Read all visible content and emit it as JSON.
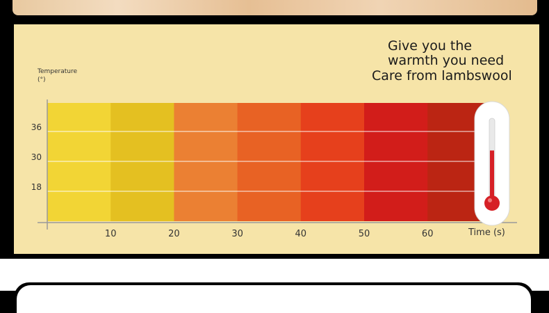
{
  "slogan": {
    "line1": "Give you the",
    "line2": "warmth you need",
    "line3": "Care from lambswool"
  },
  "chart_data": {
    "type": "bar",
    "ylabel": "Temperature",
    "yunit": "(°)",
    "xlabel": "Time (s)",
    "x_ticks": [
      "10",
      "20",
      "30",
      "40",
      "50",
      "60"
    ],
    "y_ticks": [
      "36",
      "30",
      "18"
    ],
    "grid": true,
    "segments": [
      {
        "from": 0,
        "to": 10,
        "color": "#f2d535"
      },
      {
        "from": 10,
        "to": 20,
        "color": "#e4c021"
      },
      {
        "from": 20,
        "to": 30,
        "color": "#eb8033"
      },
      {
        "from": 30,
        "to": 40,
        "color": "#e86224"
      },
      {
        "from": 40,
        "to": 50,
        "color": "#e6401c"
      },
      {
        "from": 50,
        "to": 60,
        "color": "#d21d1a"
      },
      {
        "from": 60,
        "to": 70,
        "color": "#bb2513"
      }
    ]
  },
  "thermometer": {
    "level": 0.62,
    "color": "#d62026"
  }
}
